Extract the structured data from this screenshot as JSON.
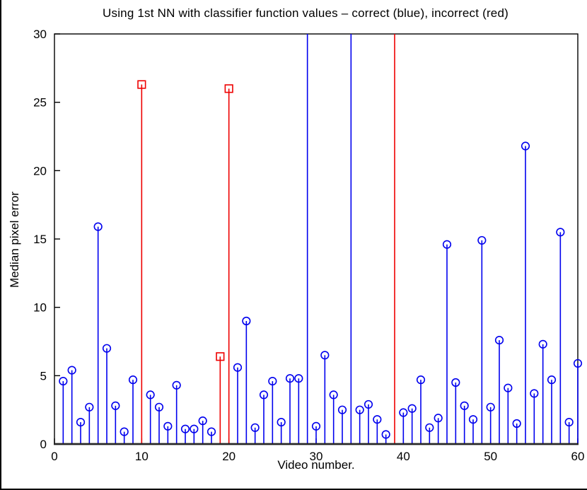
{
  "chart_data": {
    "type": "stem",
    "title": "Using 1st NN with classifier function values – correct (blue), incorrect (red)",
    "xlabel": "Video number.",
    "ylabel": "Median pixel error",
    "xlim": [
      0,
      60
    ],
    "ylim": [
      0,
      30
    ],
    "xticks": [
      0,
      10,
      20,
      30,
      40,
      50,
      60
    ],
    "yticks": [
      0,
      5,
      10,
      15,
      20,
      25,
      30
    ],
    "grid": false,
    "legend_position": "in-title",
    "colors": {
      "correct": "#0000ee",
      "incorrect": "#ee0000"
    },
    "markers": {
      "correct": "circle",
      "incorrect": "square"
    },
    "clipped_note": "stems with clipped=true exceed the y-axis maximum of 30 and are drawn to the top of the axes without a marker",
    "points": [
      {
        "x": 1,
        "y": 4.6,
        "class": "correct"
      },
      {
        "x": 2,
        "y": 5.4,
        "class": "correct"
      },
      {
        "x": 3,
        "y": 1.6,
        "class": "correct"
      },
      {
        "x": 4,
        "y": 2.7,
        "class": "correct"
      },
      {
        "x": 5,
        "y": 15.9,
        "class": "correct"
      },
      {
        "x": 6,
        "y": 7.0,
        "class": "correct"
      },
      {
        "x": 7,
        "y": 2.8,
        "class": "correct"
      },
      {
        "x": 8,
        "y": 0.9,
        "class": "correct"
      },
      {
        "x": 9,
        "y": 4.7,
        "class": "correct"
      },
      {
        "x": 10,
        "y": 26.3,
        "class": "incorrect"
      },
      {
        "x": 11,
        "y": 3.6,
        "class": "correct"
      },
      {
        "x": 12,
        "y": 2.7,
        "class": "correct"
      },
      {
        "x": 13,
        "y": 1.3,
        "class": "correct"
      },
      {
        "x": 14,
        "y": 4.3,
        "class": "correct"
      },
      {
        "x": 15,
        "y": 1.1,
        "class": "correct"
      },
      {
        "x": 16,
        "y": 1.1,
        "class": "correct"
      },
      {
        "x": 17,
        "y": 1.7,
        "class": "correct"
      },
      {
        "x": 18,
        "y": 0.9,
        "class": "correct"
      },
      {
        "x": 19,
        "y": 6.4,
        "class": "incorrect"
      },
      {
        "x": 20,
        "y": 26.0,
        "class": "incorrect"
      },
      {
        "x": 21,
        "y": 5.6,
        "class": "correct"
      },
      {
        "x": 22,
        "y": 9.0,
        "class": "correct"
      },
      {
        "x": 23,
        "y": 1.2,
        "class": "correct"
      },
      {
        "x": 24,
        "y": 3.6,
        "class": "correct"
      },
      {
        "x": 25,
        "y": 4.6,
        "class": "correct"
      },
      {
        "x": 26,
        "y": 1.6,
        "class": "correct"
      },
      {
        "x": 27,
        "y": 4.8,
        "class": "correct"
      },
      {
        "x": 28,
        "y": 4.8,
        "class": "correct"
      },
      {
        "x": 29,
        "y": null,
        "clipped": true,
        "class": "correct"
      },
      {
        "x": 30,
        "y": 1.3,
        "class": "correct"
      },
      {
        "x": 31,
        "y": 6.5,
        "class": "correct"
      },
      {
        "x": 32,
        "y": 3.6,
        "class": "correct"
      },
      {
        "x": 33,
        "y": 2.5,
        "class": "correct"
      },
      {
        "x": 34,
        "y": null,
        "clipped": true,
        "class": "correct"
      },
      {
        "x": 35,
        "y": 2.5,
        "class": "correct"
      },
      {
        "x": 36,
        "y": 2.9,
        "class": "correct"
      },
      {
        "x": 37,
        "y": 1.8,
        "class": "correct"
      },
      {
        "x": 38,
        "y": 0.7,
        "class": "correct"
      },
      {
        "x": 39,
        "y": null,
        "clipped": true,
        "class": "incorrect"
      },
      {
        "x": 40,
        "y": 2.3,
        "class": "correct"
      },
      {
        "x": 41,
        "y": 2.6,
        "class": "correct"
      },
      {
        "x": 42,
        "y": 4.7,
        "class": "correct"
      },
      {
        "x": 43,
        "y": 1.2,
        "class": "correct"
      },
      {
        "x": 44,
        "y": 1.9,
        "class": "correct"
      },
      {
        "x": 45,
        "y": 14.6,
        "class": "correct"
      },
      {
        "x": 46,
        "y": 4.5,
        "class": "correct"
      },
      {
        "x": 47,
        "y": 2.8,
        "class": "correct"
      },
      {
        "x": 48,
        "y": 1.8,
        "class": "correct"
      },
      {
        "x": 49,
        "y": 14.9,
        "class": "correct"
      },
      {
        "x": 50,
        "y": 2.7,
        "class": "correct"
      },
      {
        "x": 51,
        "y": 7.6,
        "class": "correct"
      },
      {
        "x": 52,
        "y": 4.1,
        "class": "correct"
      },
      {
        "x": 53,
        "y": 1.5,
        "class": "correct"
      },
      {
        "x": 54,
        "y": 21.8,
        "class": "correct"
      },
      {
        "x": 55,
        "y": 3.7,
        "class": "correct"
      },
      {
        "x": 56,
        "y": 7.3,
        "class": "correct"
      },
      {
        "x": 57,
        "y": 4.7,
        "class": "correct"
      },
      {
        "x": 58,
        "y": 15.5,
        "class": "correct"
      },
      {
        "x": 59,
        "y": 1.6,
        "class": "correct"
      },
      {
        "x": 60,
        "y": 5.9,
        "class": "correct"
      }
    ]
  }
}
